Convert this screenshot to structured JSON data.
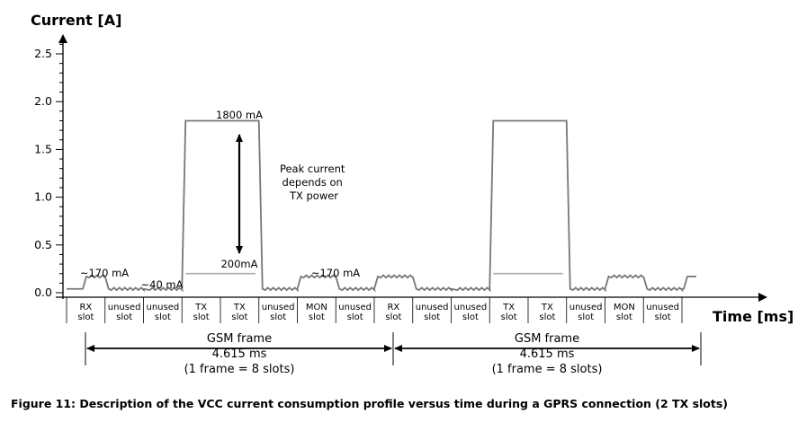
{
  "chart_data": {
    "type": "line",
    "ylabel": "Current [A]",
    "xlabel": "Time [ms]",
    "ylim": [
      0,
      2.5
    ],
    "yticks": [
      "0.0",
      "0.5",
      "1.0",
      "1.5",
      "2.0",
      "2.5"
    ],
    "slots": [
      "RX slot",
      "unused slot",
      "unused slot",
      "TX slot",
      "TX slot",
      "unused slot",
      "MON slot",
      "unused slot",
      "RX slot",
      "unused slot",
      "unused slot",
      "TX slot",
      "TX slot",
      "unused slot",
      "MON slot",
      "unused slot"
    ],
    "slot_labels": [
      [
        "RX",
        "slot"
      ],
      [
        "unused",
        "slot"
      ],
      [
        "unused",
        "slot"
      ],
      [
        "TX",
        "slot"
      ],
      [
        "TX",
        "slot"
      ],
      [
        "unused",
        "slot"
      ],
      [
        "MON",
        "slot"
      ],
      [
        "unused",
        "slot"
      ],
      [
        "RX",
        "slot"
      ],
      [
        "unused",
        "slot"
      ],
      [
        "unused",
        "slot"
      ],
      [
        "TX",
        "slot"
      ],
      [
        "TX",
        "slot"
      ],
      [
        "unused",
        "slot"
      ],
      [
        "MON",
        "slot"
      ],
      [
        "unused",
        "slot"
      ]
    ],
    "series": [
      {
        "values": [
          0.17,
          0.04,
          0.04,
          1.8,
          1.8,
          0.04,
          0.17,
          0.04,
          0.17,
          0.04,
          0.04,
          1.8,
          1.8,
          0.04,
          0.17,
          0.04
        ]
      },
      {
        "values": [
          null,
          null,
          null,
          0.2,
          0.2,
          null,
          null,
          null,
          null,
          null,
          null,
          0.2,
          0.2,
          null,
          null,
          null
        ]
      }
    ],
    "annotations": {
      "peak": "1800 mA",
      "tx_low": "200mA",
      "rx": "~170 mA",
      "idle": "~40 mA",
      "mon": "~170 mA",
      "peak_note": [
        "Peak current",
        "depends on",
        "TX power"
      ]
    },
    "frames": [
      {
        "label": "GSM frame",
        "duration": "4.615 ms",
        "note": "(1 frame = 8 slots)"
      },
      {
        "label": "GSM frame",
        "duration": "4.615 ms",
        "note": "(1 frame = 8 slots)"
      }
    ]
  },
  "caption": "Figure 11: Description of the VCC current consumption profile versus time during a GPRS connection (2 TX slots)"
}
